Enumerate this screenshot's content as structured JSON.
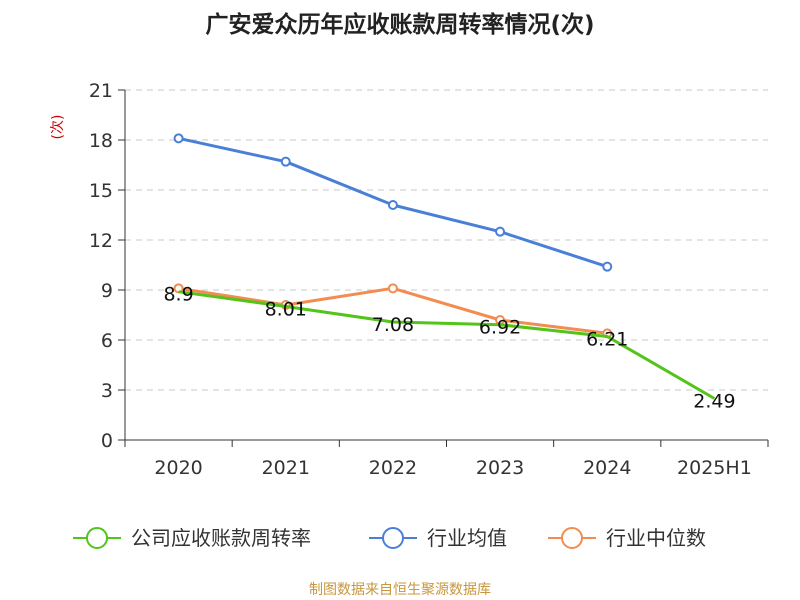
{
  "chart_data": {
    "type": "line",
    "title": "广安爱众历年应收账款周转率情况(次)",
    "ylabel": "(次)",
    "categories": [
      "2020",
      "2021",
      "2022",
      "2023",
      "2024",
      "2025H1"
    ],
    "yticks": [
      "0",
      "3",
      "6",
      "9",
      "12",
      "15",
      "18",
      "21"
    ],
    "ylim": [
      0,
      21
    ],
    "grid": "horizontal-dashed",
    "legend_position": "bottom",
    "series": [
      {
        "name": "公司应收账款周转率",
        "color": "#52c41a",
        "values": [
          8.9,
          8.01,
          7.08,
          6.92,
          6.21,
          2.49
        ],
        "labels": [
          "8.9",
          "8.01",
          "7.08",
          "6.92",
          "6.21",
          "2.49"
        ]
      },
      {
        "name": "行业均值",
        "color": "#4a7fd8",
        "values": [
          18.1,
          16.7,
          14.1,
          12.5,
          10.4,
          null
        ]
      },
      {
        "name": "行业中位数",
        "color": "#f28c50",
        "values": [
          9.1,
          8.1,
          9.1,
          7.2,
          6.4,
          null
        ]
      }
    ],
    "source": "制图数据来自恒生聚源数据库"
  }
}
